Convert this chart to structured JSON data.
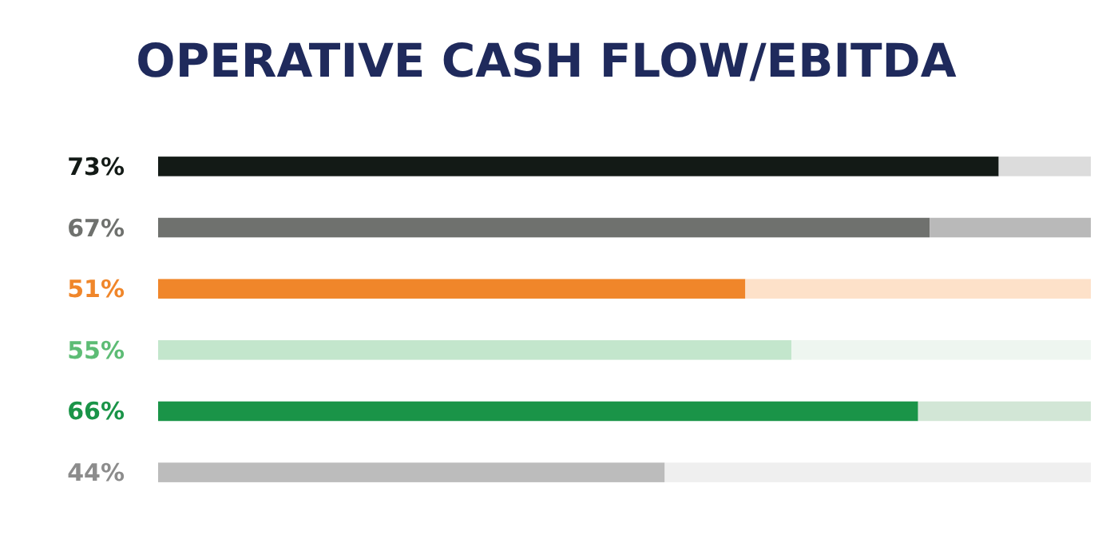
{
  "chart_data": {
    "type": "bar",
    "title": "OPERATIVE CASH FLOW/EBITDA",
    "orientation": "horizontal",
    "stacked": true,
    "categories": [
      null,
      null,
      null,
      null,
      null,
      null
    ],
    "series": [
      {
        "values": [
          73,
          67,
          51,
          55,
          66,
          44
        ],
        "value_labels": [
          "73%",
          "67%",
          "51%",
          "55%",
          "66%",
          "44%"
        ],
        "colors": [
          "#131a16",
          "#6f716e",
          "#f0862a",
          "#c3e6cc",
          "#1a9448",
          "#bcbcbc"
        ]
      },
      {
        "values": [
          8,
          14,
          30,
          26,
          15,
          37
        ],
        "colors": [
          "#dcdcdc",
          "#b9b9b9",
          "#fde1c9",
          "#eef6f0",
          "#d2e6d6",
          "#efefef"
        ]
      }
    ]
  }
}
